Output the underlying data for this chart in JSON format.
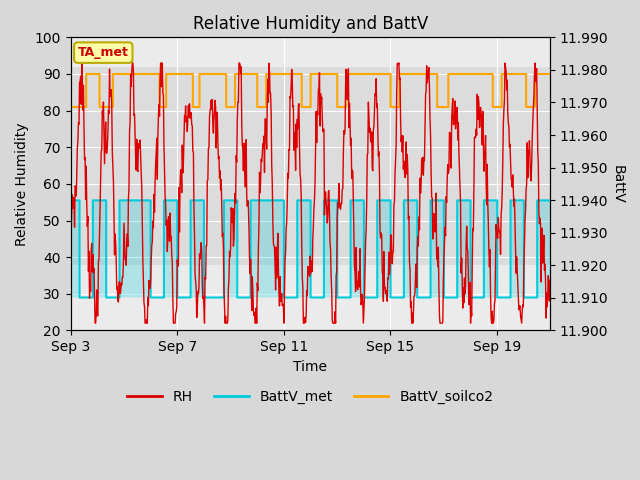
{
  "title": "Relative Humidity and BattV",
  "ylabel_left": "Relative Humidity",
  "ylabel_right": "BattV",
  "xlabel": "Time",
  "ylim_left": [
    20,
    100
  ],
  "ylim_right": [
    11.9,
    11.99
  ],
  "annotation_text": "TA_met",
  "annotation_box_facecolor": "#FFFFAA",
  "annotation_box_edgecolor": "#BBAA00",
  "annotation_text_color": "#CC0000",
  "fig_facecolor": "#D8D8D8",
  "plot_facecolor": "#EBEBEB",
  "gray_band_facecolor": "#DCDCDC",
  "grid_color": "#FFFFFF",
  "rh_color": "#DD0000",
  "battv_met_color": "#00CCDD",
  "battv_soilco2_color": "#FFA500",
  "xtick_labels": [
    "Sep 3",
    "Sep 7",
    "Sep 11",
    "Sep 15",
    "Sep 19"
  ],
  "xtick_positions": [
    0,
    4,
    8,
    12,
    16
  ],
  "yticks_left": [
    20,
    30,
    40,
    50,
    60,
    70,
    80,
    90,
    100
  ],
  "yticks_right": [
    11.9,
    11.91,
    11.92,
    11.93,
    11.94,
    11.95,
    11.96,
    11.97,
    11.98,
    11.99
  ],
  "n_days": 18,
  "gray_band_ymin": 38,
  "gray_band_ymax": 92
}
